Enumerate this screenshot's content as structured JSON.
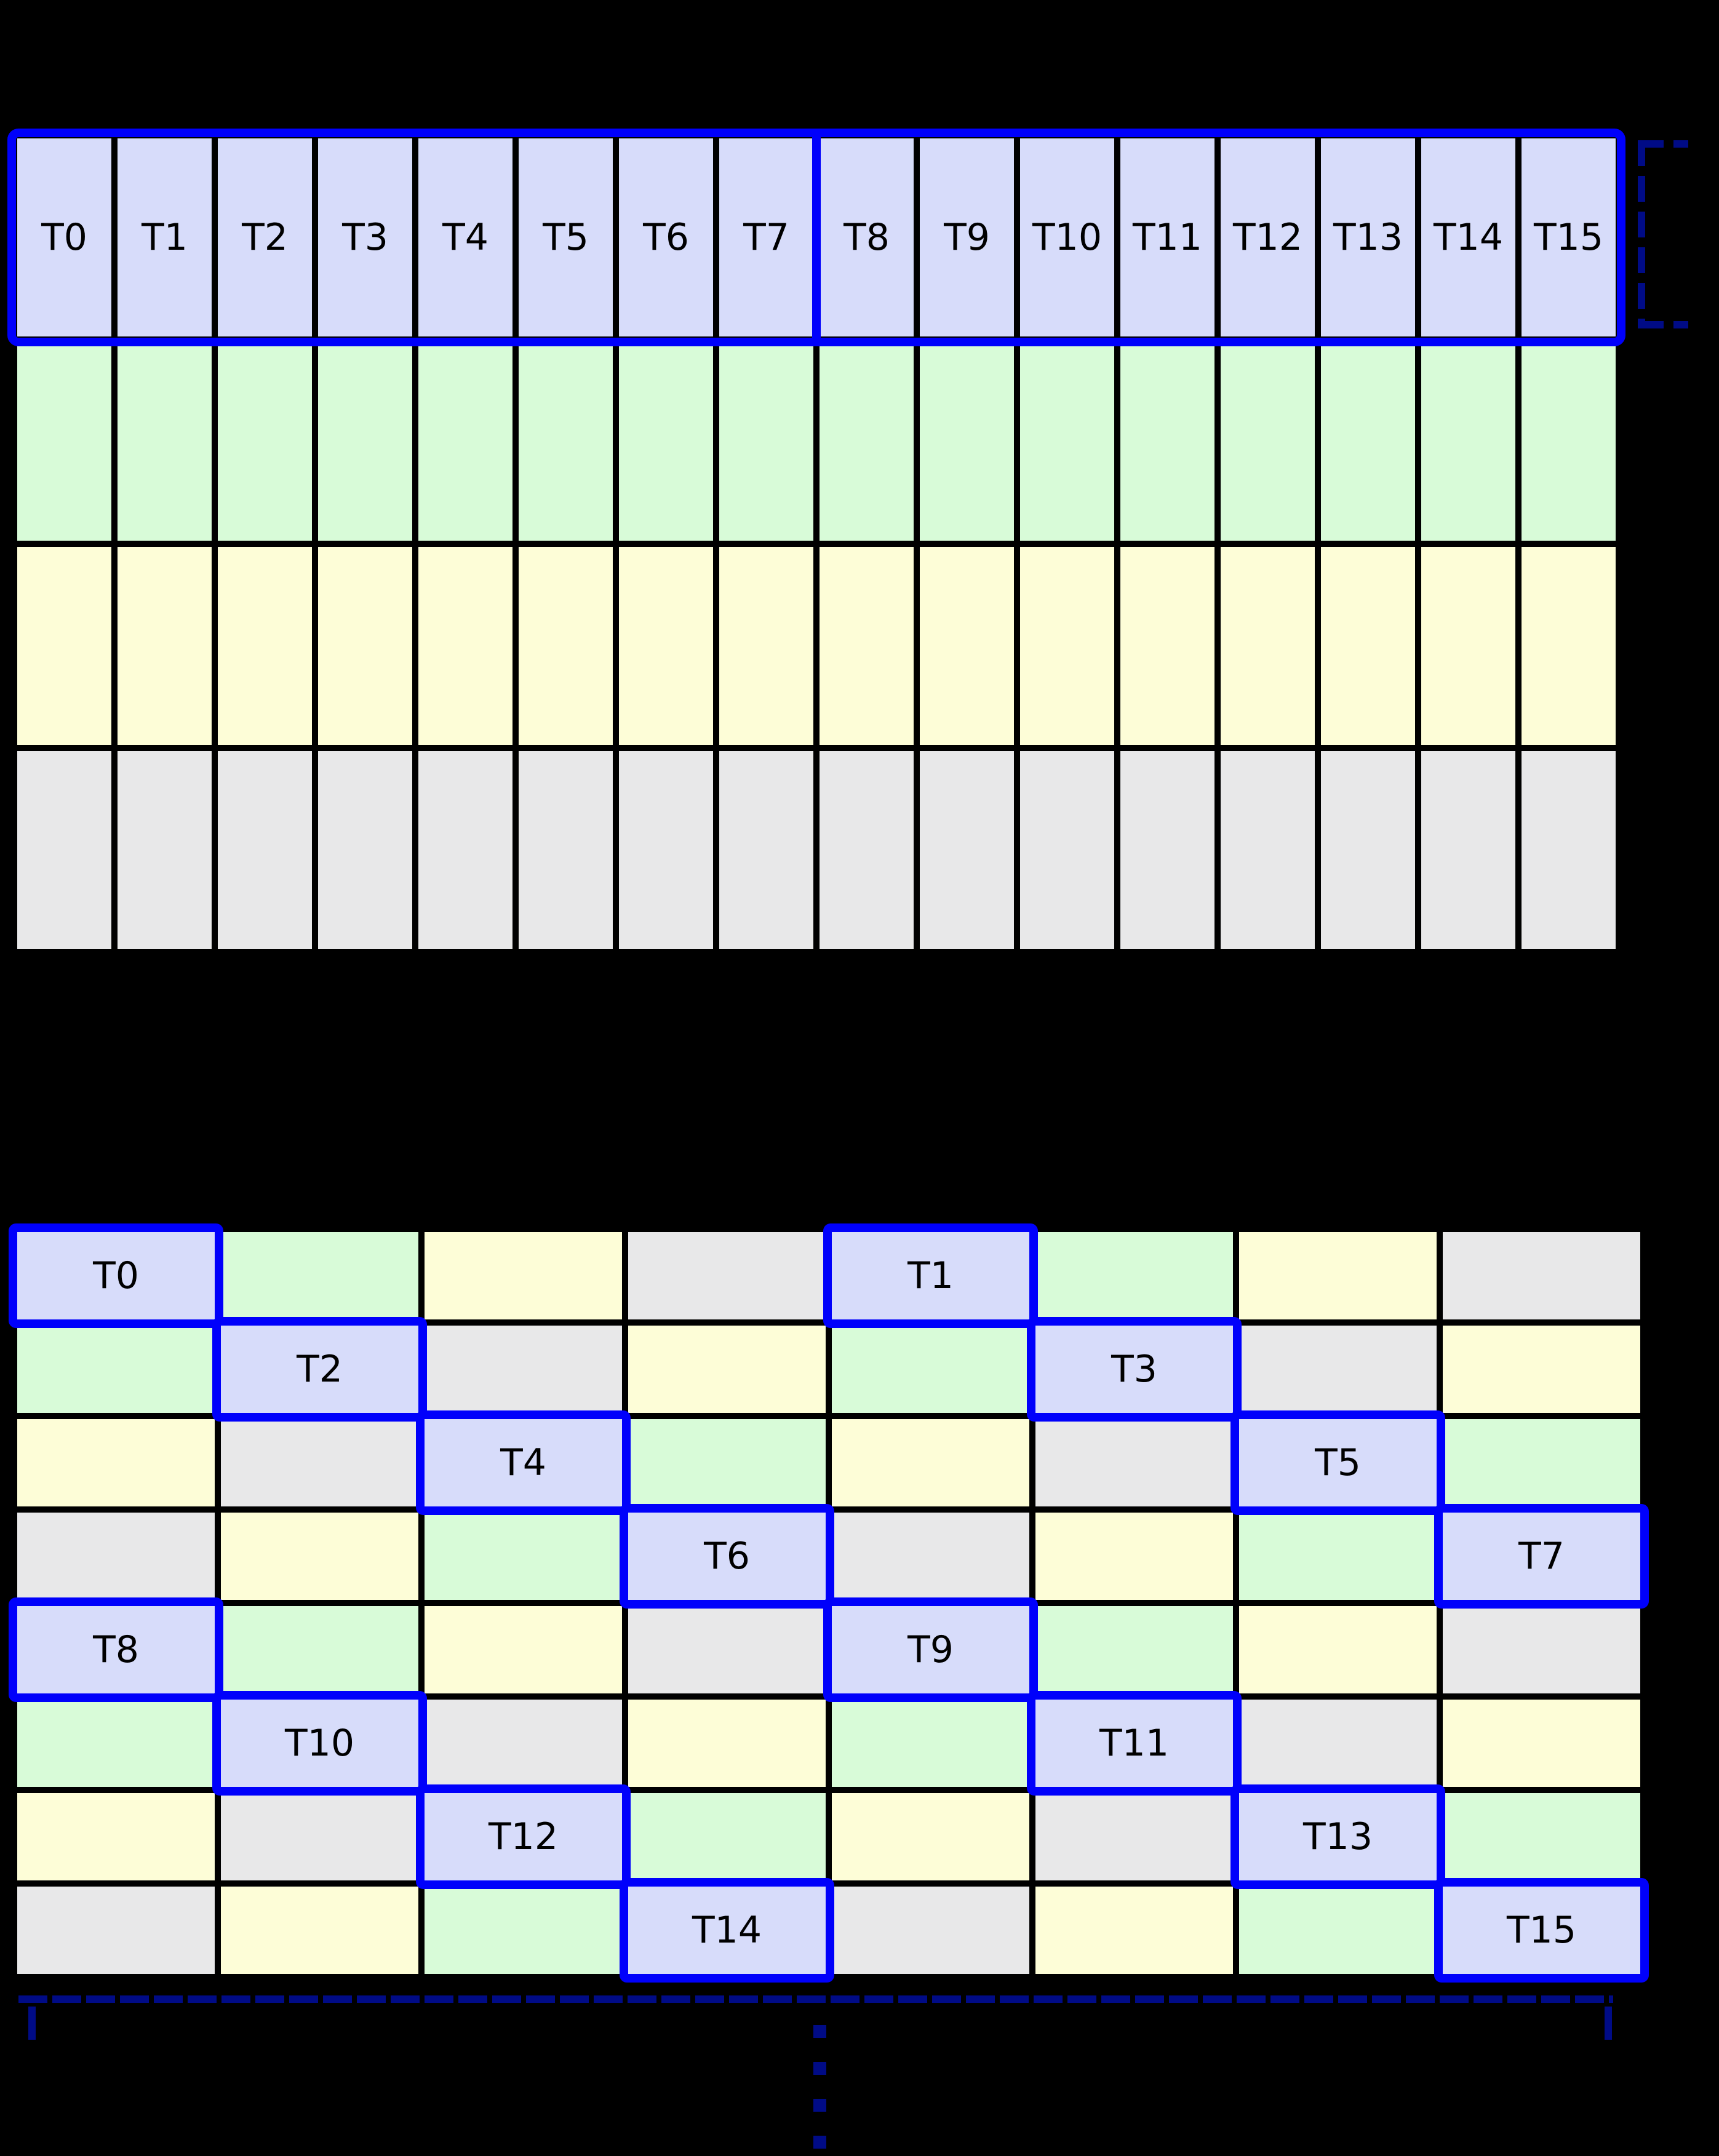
{
  "colors": {
    "background": "#000000",
    "grid_line": "#000000",
    "thread": "#d7dcfa",
    "green": "#d8fbd8",
    "yellow": "#fdfdd7",
    "gray": "#e8e8e9",
    "highlight_border": "#0000fb",
    "bracket": "#000b86",
    "label_text": "#000000"
  },
  "top_grid": {
    "rows": 4,
    "columns": 16,
    "row_fills": [
      "thread",
      "green",
      "yellow",
      "gray"
    ],
    "thread_labels": [
      "T0",
      "T1",
      "T2",
      "T3",
      "T4",
      "T5",
      "T6",
      "T7",
      "T8",
      "T9",
      "T10",
      "T11",
      "T12",
      "T13",
      "T14",
      "T15"
    ],
    "highlight": {
      "row": 0,
      "split_after_column": 8
    }
  },
  "bottom_grid": {
    "rows": 8,
    "columns": 8,
    "fill_pattern": [
      [
        "thread",
        "green",
        "yellow",
        "gray"
      ],
      [
        "green",
        "thread",
        "gray",
        "yellow"
      ],
      [
        "yellow",
        "gray",
        "thread",
        "green"
      ],
      [
        "gray",
        "yellow",
        "green",
        "thread"
      ]
    ],
    "thread_boxes": [
      {
        "label": "T0",
        "row": 0,
        "col": 0
      },
      {
        "label": "T1",
        "row": 0,
        "col": 4
      },
      {
        "label": "T2",
        "row": 1,
        "col": 1
      },
      {
        "label": "T3",
        "row": 1,
        "col": 5
      },
      {
        "label": "T4",
        "row": 2,
        "col": 2
      },
      {
        "label": "T5",
        "row": 2,
        "col": 6
      },
      {
        "label": "T6",
        "row": 3,
        "col": 3
      },
      {
        "label": "T7",
        "row": 3,
        "col": 7
      },
      {
        "label": "T8",
        "row": 4,
        "col": 0
      },
      {
        "label": "T9",
        "row": 4,
        "col": 4
      },
      {
        "label": "T10",
        "row": 5,
        "col": 1
      },
      {
        "label": "T11",
        "row": 5,
        "col": 5
      },
      {
        "label": "T12",
        "row": 6,
        "col": 2
      },
      {
        "label": "T13",
        "row": 6,
        "col": 6
      },
      {
        "label": "T14",
        "row": 7,
        "col": 3
      },
      {
        "label": "T15",
        "row": 7,
        "col": 7
      }
    ]
  },
  "annotations": {
    "right_bracket": {
      "name": "thread-row-span-bracket"
    },
    "bottom_bracket": {
      "name": "grid-width-bracket"
    },
    "continuation_dots": {
      "count": 4
    }
  }
}
